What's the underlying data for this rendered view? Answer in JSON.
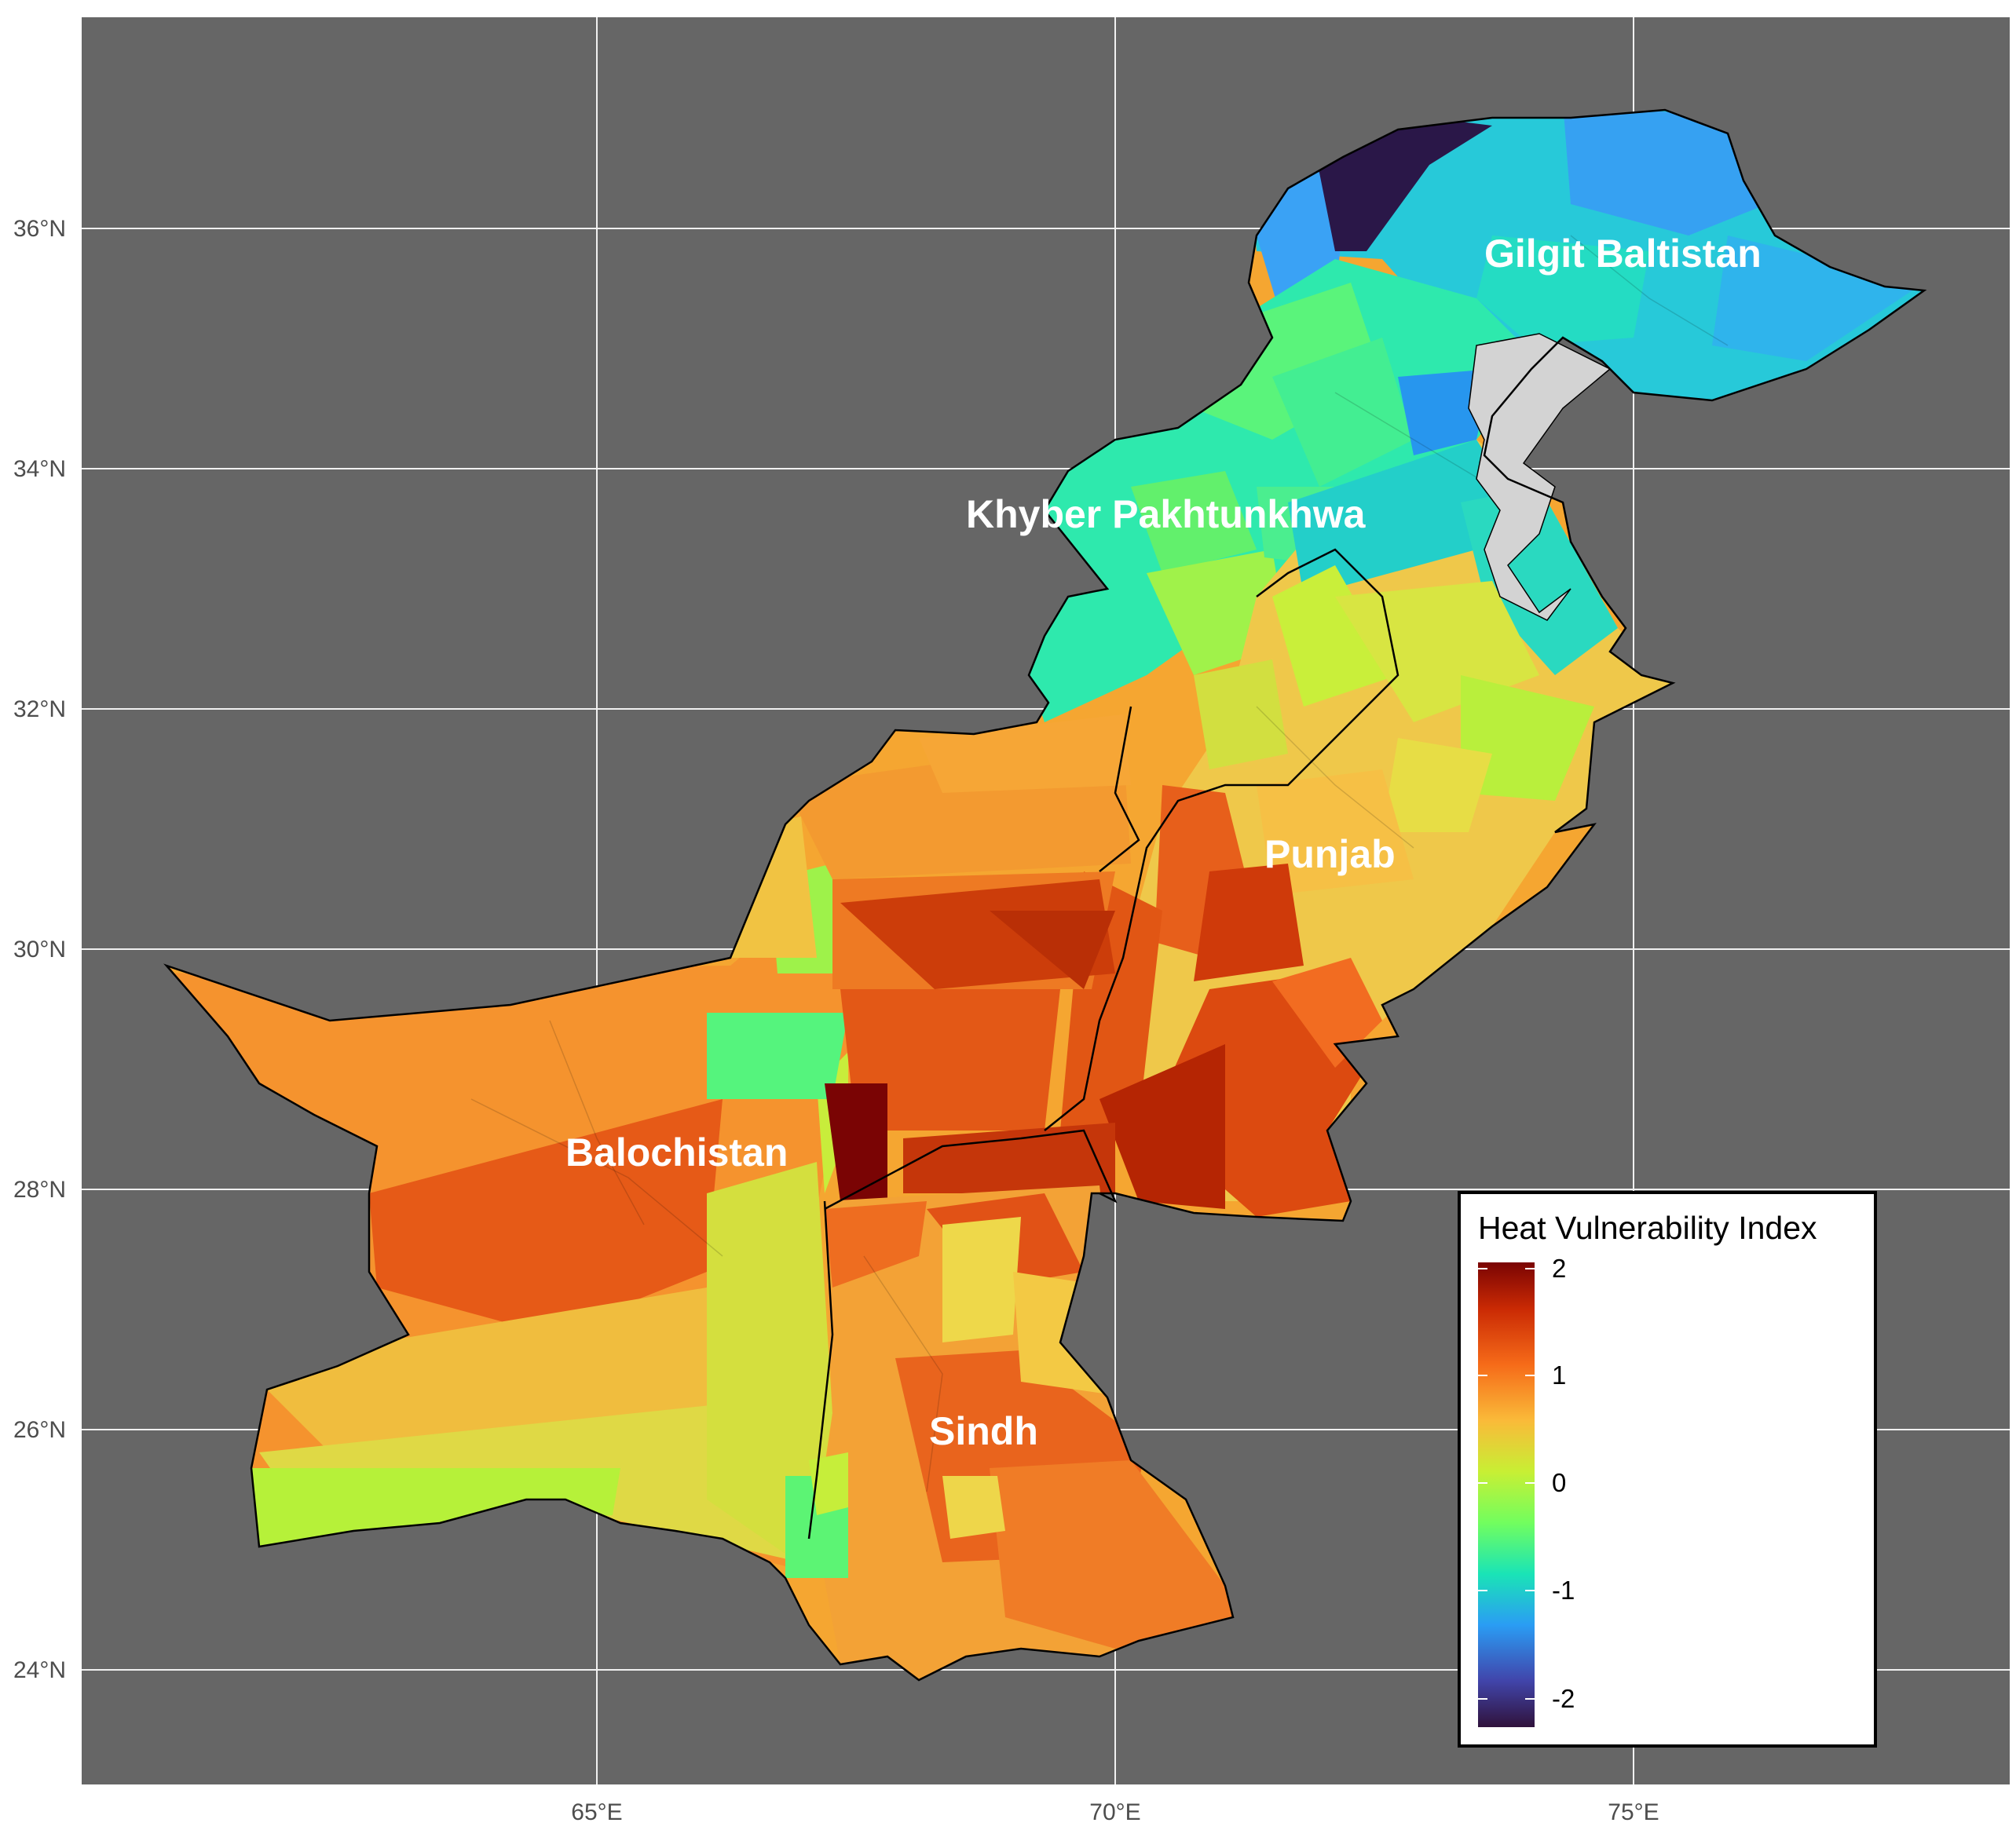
{
  "map": {
    "panel_background": "#666666",
    "grid_color": "#ffffff",
    "longitude_ticks": [
      "65°E",
      "70°E",
      "75°E"
    ],
    "latitude_ticks": [
      "36°N",
      "34°N",
      "32°N",
      "30°N",
      "28°N",
      "26°N",
      "24°N"
    ],
    "unmapped_region_color": "#d3d3d3"
  },
  "regions": [
    {
      "name": "Gilgit Baltistan",
      "index_range": [
        -2.2,
        -0.6
      ],
      "dominant_color": "#2a9df4"
    },
    {
      "name": "Khyber Pakhtunkhwa",
      "index_range": [
        -1.8,
        0.4
      ],
      "dominant_color": "#1de9b6"
    },
    {
      "name": "Punjab",
      "index_range": [
        -0.2,
        1.8
      ],
      "dominant_color": "#f5c242"
    },
    {
      "name": "Balochistan",
      "index_range": [
        -0.4,
        2.1
      ],
      "dominant_color": "#f58a2a"
    },
    {
      "name": "Sindh",
      "index_range": [
        0.2,
        1.8
      ],
      "dominant_color": "#ef7a24"
    }
  ],
  "legend": {
    "title": "Heat Vulnerability Index",
    "ticks": [
      "2",
      "1",
      "0",
      "-1",
      "-2"
    ],
    "tick_values": [
      2,
      1,
      0,
      -1,
      -2
    ],
    "colormap": [
      "#30123b",
      "#4145ab",
      "#2a9df4",
      "#1ae4b6",
      "#72fe5e",
      "#c8ef34",
      "#faba39",
      "#f66b19",
      "#ca2a04",
      "#7a0403"
    ]
  }
}
